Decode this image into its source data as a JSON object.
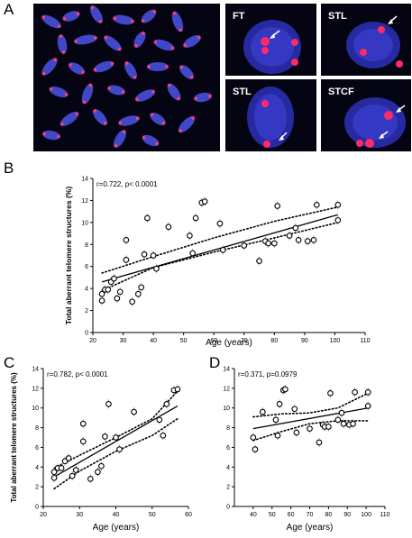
{
  "panels": {
    "A": "A",
    "B": "B",
    "C": "C",
    "D": "D"
  },
  "insets": [
    {
      "label": "FT"
    },
    {
      "label": "STL"
    },
    {
      "label": "STL"
    },
    {
      "label": "STCF"
    }
  ],
  "chart_data": [
    {
      "type": "scatter",
      "panel": "B",
      "annotation": "r=0.722, p< 0.0001",
      "xlabel": "Age (years)",
      "ylabel": "Total aberrant telomere structures (%)",
      "xlim": [
        20,
        110
      ],
      "ylim": [
        0,
        14
      ],
      "xticks": [
        20,
        30,
        40,
        50,
        60,
        70,
        80,
        90,
        100,
        110
      ],
      "yticks": [
        0,
        2,
        4,
        6,
        8,
        10,
        12,
        14
      ],
      "x": [
        23,
        23,
        24,
        25,
        26,
        27,
        28,
        29,
        31,
        31,
        33,
        35,
        36,
        37,
        38,
        40,
        41,
        45,
        52,
        53,
        54,
        56,
        57,
        62,
        63,
        70,
        75,
        77,
        78,
        80,
        81,
        85,
        87,
        88,
        91,
        93,
        94,
        101,
        101
      ],
      "y": [
        2.9,
        3.5,
        3.9,
        3.9,
        4.6,
        4.9,
        3.1,
        3.7,
        8.4,
        6.6,
        2.8,
        3.5,
        4.1,
        7.1,
        10.4,
        7.0,
        5.8,
        9.6,
        8.8,
        7.2,
        10.4,
        11.8,
        11.9,
        9.9,
        7.5,
        7.9,
        6.5,
        8.3,
        8.1,
        8.1,
        11.5,
        8.8,
        9.5,
        8.4,
        8.3,
        8.4,
        11.6,
        10.2,
        11.6
      ],
      "fit": {
        "x": [
          23,
          101
        ],
        "y": [
          4.6,
          10.7
        ]
      },
      "ci_upper": {
        "x": [
          23,
          40,
          60,
          80,
          101
        ],
        "y": [
          5.4,
          6.9,
          8.6,
          10.1,
          11.4
        ]
      },
      "ci_lower": {
        "x": [
          23,
          40,
          60,
          80,
          101
        ],
        "y": [
          3.8,
          5.9,
          7.3,
          8.6,
          10.0
        ]
      }
    },
    {
      "type": "scatter",
      "panel": "C",
      "annotation": "r=0.782, p< 0.0001",
      "xlabel": "Age (years)",
      "ylabel": "Total aberrant telomere structures (%)",
      "xlim": [
        20,
        60
      ],
      "ylim": [
        0,
        14
      ],
      "xticks": [
        20,
        30,
        40,
        50,
        60
      ],
      "yticks": [
        0,
        2,
        4,
        6,
        8,
        10,
        12,
        14
      ],
      "x": [
        23,
        23,
        24,
        25,
        26,
        27,
        28,
        29,
        31,
        31,
        33,
        35,
        36,
        37,
        38,
        40,
        41,
        45,
        52,
        53,
        54,
        56,
        57
      ],
      "y": [
        2.9,
        3.5,
        3.9,
        3.9,
        4.6,
        4.9,
        3.1,
        3.7,
        8.4,
        6.6,
        2.8,
        3.5,
        4.1,
        7.1,
        10.4,
        7.0,
        5.8,
        9.6,
        8.8,
        7.2,
        10.4,
        11.8,
        11.9
      ],
      "fit": {
        "x": [
          23,
          57
        ],
        "y": [
          3.0,
          10.2
        ]
      },
      "ci_upper": {
        "x": [
          23,
          30,
          40,
          50,
          57
        ],
        "y": [
          3.9,
          5.2,
          7.0,
          8.9,
          11.7
        ]
      },
      "ci_lower": {
        "x": [
          23,
          30,
          40,
          50,
          57
        ],
        "y": [
          1.8,
          3.6,
          5.6,
          7.2,
          8.9
        ]
      }
    },
    {
      "type": "scatter",
      "panel": "D",
      "annotation": "r=0.371, p=0.0979",
      "xlabel": "Age (years)",
      "ylabel": "",
      "xlim": [
        30,
        110
      ],
      "ylim": [
        0,
        14
      ],
      "xticks": [
        40,
        50,
        60,
        70,
        80,
        90,
        100,
        110
      ],
      "yticks": [
        0,
        2,
        4,
        6,
        8,
        10,
        12,
        14
      ],
      "x": [
        40,
        41,
        45,
        52,
        53,
        54,
        56,
        57,
        62,
        63,
        70,
        75,
        77,
        78,
        80,
        81,
        85,
        87,
        88,
        91,
        93,
        94,
        101,
        101
      ],
      "y": [
        7.0,
        5.8,
        9.6,
        8.8,
        7.2,
        10.4,
        11.8,
        11.9,
        9.9,
        7.5,
        7.9,
        6.5,
        8.3,
        8.1,
        8.1,
        11.5,
        8.8,
        9.5,
        8.4,
        8.3,
        8.4,
        11.6,
        10.2,
        11.6
      ],
      "fit": {
        "x": [
          40,
          101
        ],
        "y": [
          7.9,
          10.0
        ]
      },
      "ci_upper": {
        "x": [
          40,
          55,
          70,
          85,
          101
        ],
        "y": [
          9.1,
          9.4,
          9.5,
          10.0,
          11.5
        ]
      },
      "ci_lower": {
        "x": [
          40,
          55,
          70,
          85,
          101
        ],
        "y": [
          6.7,
          7.6,
          8.4,
          8.7,
          8.7
        ]
      }
    }
  ]
}
